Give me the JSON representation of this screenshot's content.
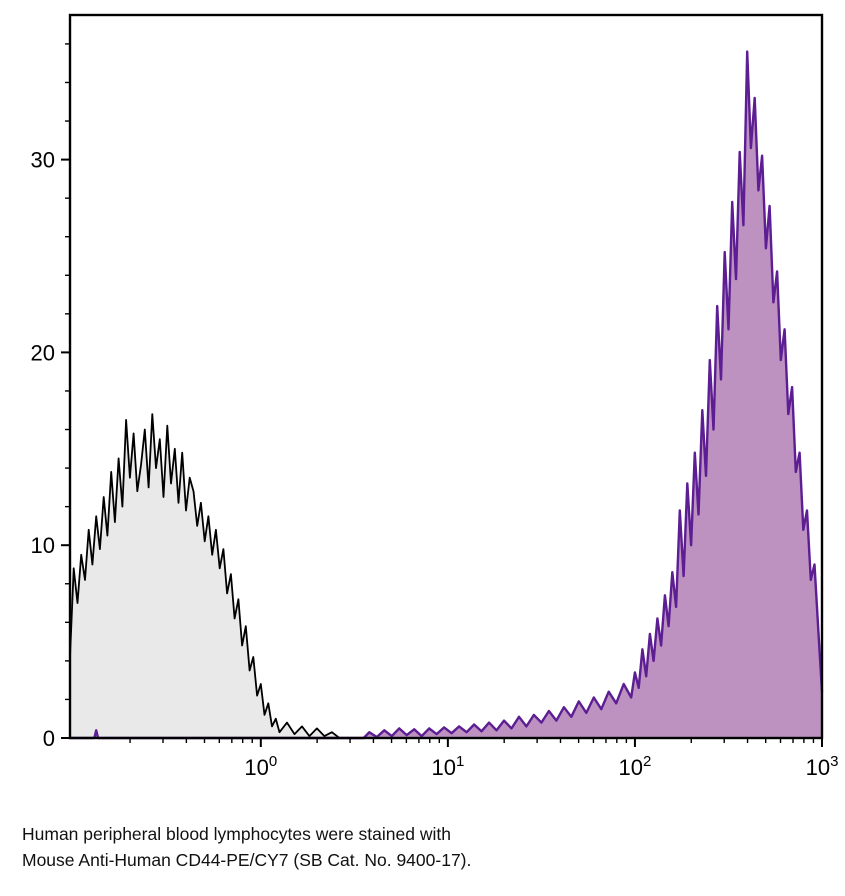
{
  "chart_data": {
    "type": "area",
    "subtype": "flow-cytometry-histogram-overlay",
    "title": "",
    "xlabel": "",
    "ylabel": "",
    "x_scale": "log10",
    "x_range_log10": [
      -1.02,
      3.0
    ],
    "ylim": [
      0,
      37.5
    ],
    "grid": false,
    "legend": "none",
    "x_ticks": [
      {
        "value": 1,
        "base": "10",
        "exponent": "0"
      },
      {
        "value": 10,
        "base": "10",
        "exponent": "1"
      },
      {
        "value": 100,
        "base": "10",
        "exponent": "2"
      },
      {
        "value": 1000,
        "base": "10",
        "exponent": "3"
      }
    ],
    "y_ticks": [
      0,
      10,
      20,
      30
    ],
    "y_minor_step": 2,
    "frame_color": "#000000",
    "series": [
      {
        "name": "black",
        "line_color": "#000000",
        "line_width": 1.8,
        "fill_color": "#e9e9e9",
        "fill_opacity": 1,
        "points_log10x_y": [
          [
            -1.02,
            4.2
          ],
          [
            -1.0,
            8.8
          ],
          [
            -0.98,
            7.0
          ],
          [
            -0.96,
            9.5
          ],
          [
            -0.94,
            8.2
          ],
          [
            -0.92,
            10.8
          ],
          [
            -0.9,
            9.0
          ],
          [
            -0.88,
            11.5
          ],
          [
            -0.86,
            9.8
          ],
          [
            -0.84,
            12.5
          ],
          [
            -0.82,
            10.5
          ],
          [
            -0.8,
            13.8
          ],
          [
            -0.78,
            11.2
          ],
          [
            -0.76,
            14.5
          ],
          [
            -0.74,
            12.0
          ],
          [
            -0.72,
            16.5
          ],
          [
            -0.7,
            13.5
          ],
          [
            -0.68,
            15.8
          ],
          [
            -0.66,
            12.8
          ],
          [
            -0.64,
            14.2
          ],
          [
            -0.62,
            16.0
          ],
          [
            -0.6,
            13.0
          ],
          [
            -0.58,
            16.8
          ],
          [
            -0.56,
            14.0
          ],
          [
            -0.54,
            15.5
          ],
          [
            -0.52,
            12.5
          ],
          [
            -0.5,
            16.2
          ],
          [
            -0.48,
            13.2
          ],
          [
            -0.46,
            15.0
          ],
          [
            -0.44,
            12.2
          ],
          [
            -0.42,
            14.8
          ],
          [
            -0.4,
            11.8
          ],
          [
            -0.38,
            13.5
          ],
          [
            -0.36,
            12.8
          ],
          [
            -0.34,
            11.0
          ],
          [
            -0.32,
            12.2
          ],
          [
            -0.3,
            10.2
          ],
          [
            -0.28,
            11.5
          ],
          [
            -0.26,
            9.5
          ],
          [
            -0.24,
            10.8
          ],
          [
            -0.22,
            8.8
          ],
          [
            -0.2,
            9.8
          ],
          [
            -0.18,
            7.5
          ],
          [
            -0.16,
            8.5
          ],
          [
            -0.14,
            6.2
          ],
          [
            -0.12,
            7.2
          ],
          [
            -0.1,
            4.8
          ],
          [
            -0.08,
            5.8
          ],
          [
            -0.06,
            3.5
          ],
          [
            -0.04,
            4.2
          ],
          [
            -0.02,
            2.2
          ],
          [
            0.0,
            2.8
          ],
          [
            0.02,
            1.2
          ],
          [
            0.04,
            1.8
          ],
          [
            0.06,
            0.6
          ],
          [
            0.08,
            1.0
          ],
          [
            0.1,
            0.3
          ],
          [
            0.14,
            0.8
          ],
          [
            0.18,
            0.2
          ],
          [
            0.22,
            0.6
          ],
          [
            0.26,
            0.1
          ],
          [
            0.3,
            0.5
          ],
          [
            0.34,
            0.1
          ],
          [
            0.38,
            0.3
          ],
          [
            0.42,
            0.0
          ]
        ]
      },
      {
        "name": "purple",
        "line_color": "#5d1d93",
        "line_width": 2.4,
        "fill_color": "#bd92c1",
        "fill_opacity": 1,
        "points_log10x_y": [
          [
            -1.02,
            0
          ],
          [
            -0.89,
            0
          ],
          [
            -0.88,
            0.4
          ],
          [
            -0.87,
            0
          ],
          [
            0.55,
            0
          ],
          [
            0.58,
            0.3
          ],
          [
            0.62,
            0.05
          ],
          [
            0.66,
            0.4
          ],
          [
            0.7,
            0.1
          ],
          [
            0.74,
            0.5
          ],
          [
            0.78,
            0.15
          ],
          [
            0.82,
            0.45
          ],
          [
            0.86,
            0.1
          ],
          [
            0.9,
            0.5
          ],
          [
            0.94,
            0.2
          ],
          [
            0.98,
            0.55
          ],
          [
            1.02,
            0.25
          ],
          [
            1.06,
            0.6
          ],
          [
            1.1,
            0.3
          ],
          [
            1.14,
            0.7
          ],
          [
            1.18,
            0.35
          ],
          [
            1.22,
            0.8
          ],
          [
            1.26,
            0.4
          ],
          [
            1.3,
            0.9
          ],
          [
            1.34,
            0.5
          ],
          [
            1.38,
            1.1
          ],
          [
            1.42,
            0.6
          ],
          [
            1.46,
            1.2
          ],
          [
            1.5,
            0.8
          ],
          [
            1.54,
            1.4
          ],
          [
            1.58,
            0.9
          ],
          [
            1.62,
            1.6
          ],
          [
            1.66,
            1.1
          ],
          [
            1.7,
            1.9
          ],
          [
            1.74,
            1.3
          ],
          [
            1.78,
            2.1
          ],
          [
            1.82,
            1.5
          ],
          [
            1.86,
            2.4
          ],
          [
            1.9,
            1.8
          ],
          [
            1.94,
            2.8
          ],
          [
            1.98,
            2.1
          ],
          [
            2.0,
            3.4
          ],
          [
            2.02,
            2.6
          ],
          [
            2.04,
            4.6
          ],
          [
            2.06,
            3.2
          ],
          [
            2.08,
            5.4
          ],
          [
            2.1,
            4.0
          ],
          [
            2.12,
            6.2
          ],
          [
            2.14,
            4.8
          ],
          [
            2.16,
            7.4
          ],
          [
            2.18,
            5.8
          ],
          [
            2.2,
            8.6
          ],
          [
            2.22,
            6.8
          ],
          [
            2.24,
            11.8
          ],
          [
            2.26,
            8.4
          ],
          [
            2.28,
            13.2
          ],
          [
            2.3,
            10.0
          ],
          [
            2.32,
            14.8
          ],
          [
            2.34,
            11.6
          ],
          [
            2.36,
            17.0
          ],
          [
            2.38,
            13.6
          ],
          [
            2.4,
            19.6
          ],
          [
            2.42,
            16.0
          ],
          [
            2.44,
            22.4
          ],
          [
            2.46,
            18.6
          ],
          [
            2.48,
            25.2
          ],
          [
            2.5,
            21.2
          ],
          [
            2.52,
            27.8
          ],
          [
            2.54,
            23.8
          ],
          [
            2.56,
            30.4
          ],
          [
            2.58,
            26.6
          ],
          [
            2.6,
            35.6
          ],
          [
            2.62,
            30.6
          ],
          [
            2.64,
            33.2
          ],
          [
            2.66,
            28.4
          ],
          [
            2.68,
            30.2
          ],
          [
            2.7,
            25.4
          ],
          [
            2.72,
            27.6
          ],
          [
            2.74,
            22.6
          ],
          [
            2.76,
            24.2
          ],
          [
            2.78,
            19.6
          ],
          [
            2.8,
            21.2
          ],
          [
            2.82,
            16.8
          ],
          [
            2.84,
            18.2
          ],
          [
            2.86,
            13.8
          ],
          [
            2.88,
            14.8
          ],
          [
            2.9,
            10.8
          ],
          [
            2.92,
            11.8
          ],
          [
            2.94,
            8.2
          ],
          [
            2.96,
            9.0
          ],
          [
            2.98,
            5.6
          ],
          [
            3.0,
            2.4
          ]
        ]
      }
    ]
  },
  "caption": {
    "line1": "Human peripheral blood lymphocytes were stained with",
    "line2": "Mouse Anti-Human CD44-PE/CY7 (SB Cat. No. 9400-17)."
  }
}
